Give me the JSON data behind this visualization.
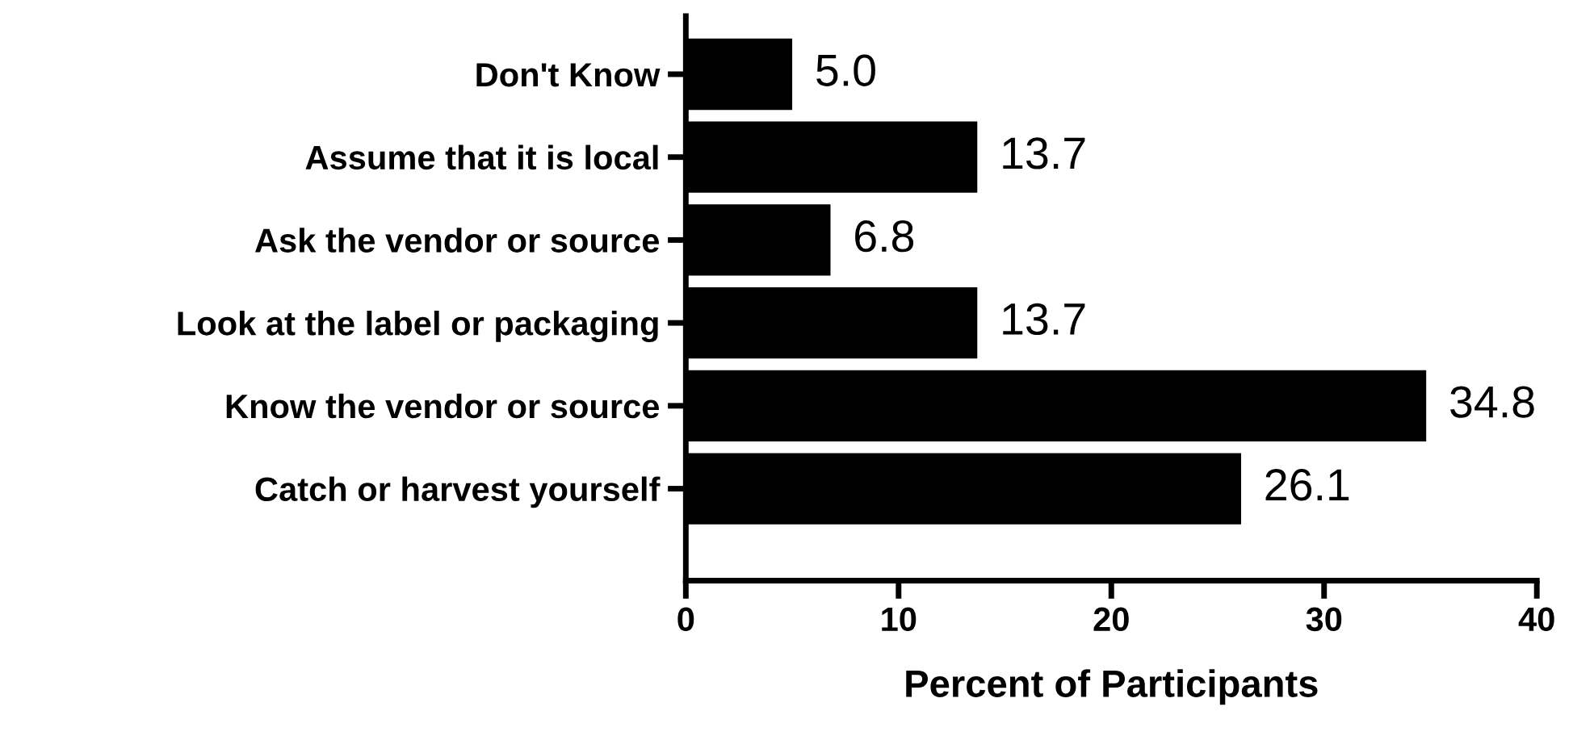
{
  "chart_data": {
    "type": "bar",
    "orientation": "horizontal",
    "xlabel": "Percent of Participants",
    "categories": [
      "Don't Know",
      "Assume that it is local",
      "Ask the vendor or source",
      "Look at the label or packaging",
      "Know the vendor or source",
      "Catch or harvest yourself"
    ],
    "values": [
      5.0,
      13.7,
      6.8,
      13.7,
      34.8,
      26.1
    ],
    "value_labels": [
      "5.0",
      "13.7",
      "6.8",
      "13.7",
      "34.8",
      "26.1"
    ],
    "color": "#000000",
    "xlim": [
      0,
      40
    ],
    "xticks": [
      0,
      10,
      20,
      30,
      40
    ],
    "grid": false,
    "legend": false
  }
}
